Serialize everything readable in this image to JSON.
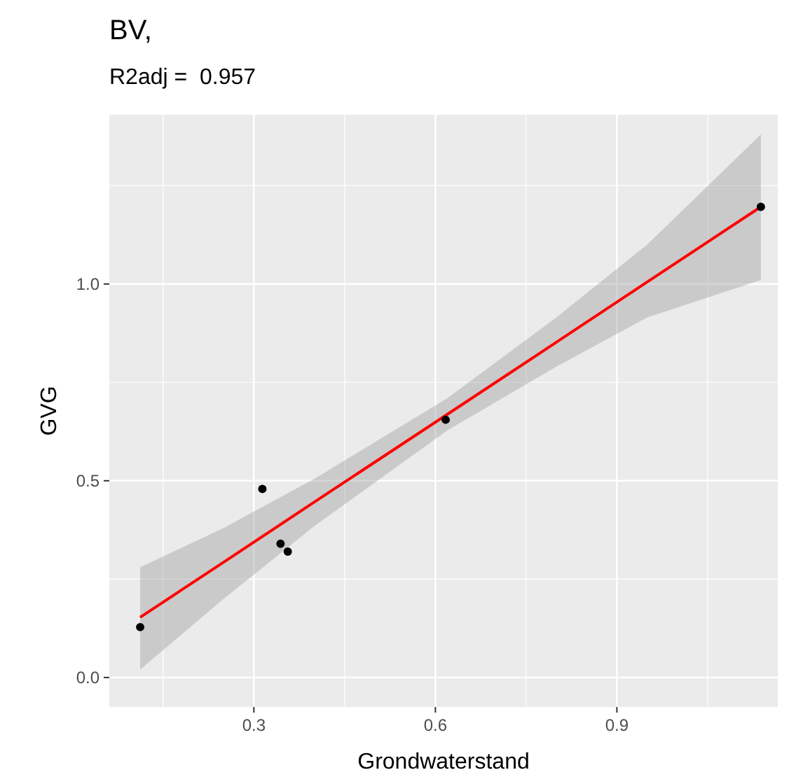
{
  "chart_data": {
    "type": "scatter",
    "title": "BV,",
    "subtitle": "R2adj =  0.957",
    "xlabel": "Grondwaterstand",
    "ylabel": "GVG",
    "xlim": [
      0.061,
      1.166
    ],
    "ylim": [
      -0.075,
      1.43
    ],
    "xticks": [
      {
        "value": 0.15,
        "label": null
      },
      0.3,
      {
        "value": 0.45,
        "label": null
      },
      0.6,
      {
        "value": 0.75,
        "label": null
      },
      0.9,
      {
        "value": 1.05,
        "label": null
      }
    ],
    "yticks": [
      {
        "value": 0,
        "label": "0.0"
      },
      {
        "value": 0.25,
        "label": null
      },
      {
        "value": 0.5,
        "label": "0.5"
      },
      {
        "value": 0.75,
        "label": null
      },
      {
        "value": 1,
        "label": "1.0"
      },
      {
        "value": 1.25,
        "label": null
      }
    ],
    "grid": true,
    "marker": "circle",
    "series": [
      {
        "type": "line",
        "marker": "none",
        "color": "#ff0000",
        "x": [
          0.112,
          0.25,
          0.4,
          0.62,
          0.8,
          0.95,
          1.138
        ],
        "values": [
          0.153,
          0.293,
          0.446,
          0.669,
          0.852,
          1.005,
          1.196
        ],
        "lower": [
          0.02,
          0.2,
          0.385,
          0.628,
          0.79,
          0.915,
          1.01
        ],
        "upper": [
          0.28,
          0.38,
          0.505,
          0.71,
          0.915,
          1.1,
          1.38
        ]
      },
      {
        "color": "#000000",
        "x": [
          0.112,
          0.314,
          0.344,
          0.356,
          0.617,
          1.138
        ],
        "values": [
          0.128,
          0.479,
          0.34,
          0.32,
          0.655,
          1.196
        ]
      }
    ]
  }
}
